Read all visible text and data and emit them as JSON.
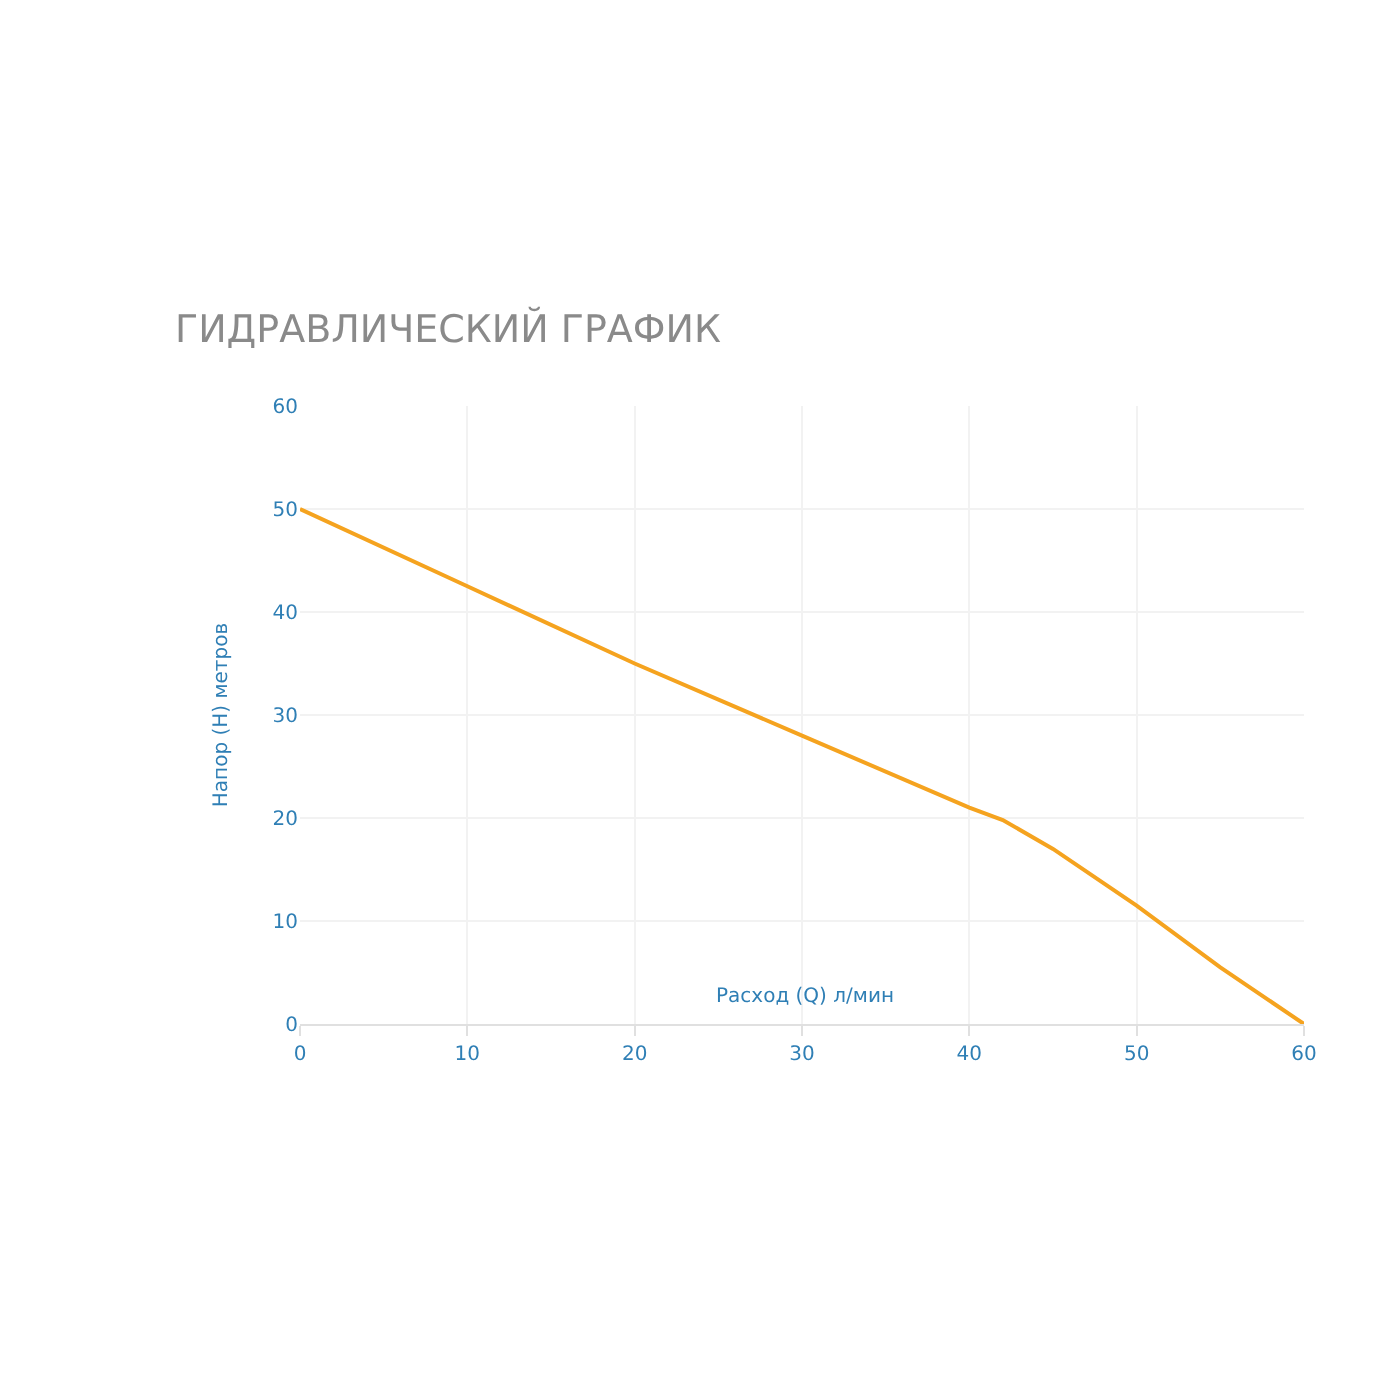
{
  "chart_data": {
    "type": "line",
    "title": "ГИДРАВЛИЧЕСКИЙ ГРАФИК",
    "xlabel": "Расход (Q) л/мин",
    "ylabel": "Напор (H) метров",
    "x": [
      0,
      10,
      20,
      30,
      40,
      42,
      45,
      50,
      55,
      60
    ],
    "series": [
      {
        "color": "#f5a31f",
        "values": [
          50,
          42.5,
          35,
          28,
          21,
          19.8,
          17,
          11.5,
          5.5,
          0
        ]
      }
    ],
    "xlim": [
      0,
      60
    ],
    "xticks": [
      0,
      10,
      20,
      30,
      40,
      50,
      60
    ],
    "ylim": [
      0,
      60
    ],
    "yticks": [
      0,
      10,
      20,
      30,
      40,
      50,
      60
    ],
    "grid": true,
    "legend": false,
    "marker": "none",
    "line_style": "solid"
  }
}
